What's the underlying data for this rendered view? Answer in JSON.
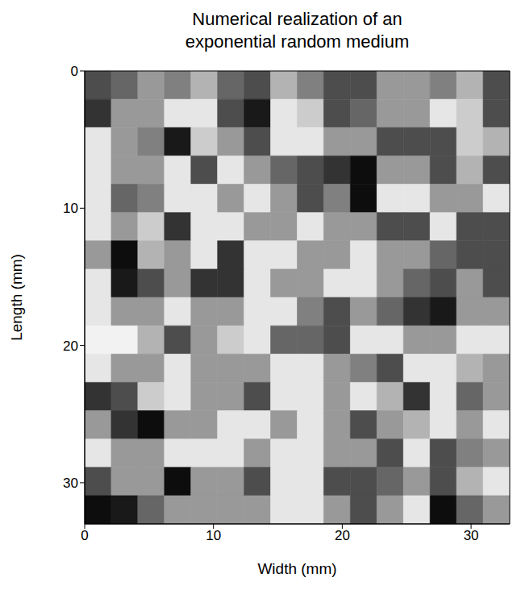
{
  "chart_data": {
    "type": "heatmap",
    "title": "Numerical realization of an exponential random medium",
    "x_label": "Width (mm)",
    "y_label": "Length (mm)",
    "xlim": [
      0,
      33
    ],
    "ylim": [
      0,
      33
    ],
    "xticks": [
      0,
      10,
      20,
      30
    ],
    "yticks": [
      0,
      10,
      20,
      30
    ],
    "color_range": [
      0,
      1
    ],
    "cells": [
      [
        0.7,
        0.6,
        0.4,
        0.5,
        0.3,
        0.6,
        0.7,
        0.3,
        0.5,
        0.7,
        0.7,
        0.4,
        0.4,
        0.5,
        0.3,
        0.7
      ],
      [
        0.8,
        0.4,
        0.4,
        0.1,
        0.1,
        0.7,
        0.9,
        0.1,
        0.2,
        0.7,
        0.6,
        0.4,
        0.4,
        0.1,
        0.2,
        0.7
      ],
      [
        0.1,
        0.4,
        0.5,
        0.9,
        0.2,
        0.4,
        0.7,
        0.1,
        0.1,
        0.4,
        0.4,
        0.7,
        0.7,
        0.7,
        0.2,
        0.3
      ],
      [
        0.1,
        0.4,
        0.4,
        0.1,
        0.7,
        0.1,
        0.4,
        0.6,
        0.7,
        0.8,
        0.95,
        0.4,
        0.4,
        0.7,
        0.3,
        0.7
      ],
      [
        0.1,
        0.6,
        0.5,
        0.1,
        0.1,
        0.4,
        0.1,
        0.4,
        0.7,
        0.5,
        0.95,
        0.1,
        0.1,
        0.4,
        0.4,
        0.1
      ],
      [
        0.1,
        0.4,
        0.2,
        0.8,
        0.1,
        0.1,
        0.4,
        0.4,
        0.1,
        0.4,
        0.4,
        0.7,
        0.7,
        0.1,
        0.7,
        0.7
      ],
      [
        0.4,
        0.95,
        0.3,
        0.4,
        0.1,
        0.8,
        0.1,
        0.1,
        0.4,
        0.4,
        0.1,
        0.4,
        0.4,
        0.6,
        0.7,
        0.7
      ],
      [
        0.1,
        0.9,
        0.7,
        0.4,
        0.8,
        0.8,
        0.1,
        0.4,
        0.4,
        0.1,
        0.1,
        0.4,
        0.6,
        0.7,
        0.4,
        0.7
      ],
      [
        0.1,
        0.4,
        0.4,
        0.1,
        0.4,
        0.4,
        0.1,
        0.1,
        0.5,
        0.7,
        0.4,
        0.6,
        0.8,
        0.9,
        0.4,
        0.4
      ],
      [
        0.05,
        0.05,
        0.3,
        0.7,
        0.4,
        0.2,
        0.1,
        0.6,
        0.6,
        0.7,
        0.1,
        0.1,
        0.4,
        0.4,
        0.1,
        0.1
      ],
      [
        0.1,
        0.4,
        0.4,
        0.1,
        0.4,
        0.4,
        0.4,
        0.1,
        0.1,
        0.4,
        0.5,
        0.7,
        0.1,
        0.1,
        0.3,
        0.4
      ],
      [
        0.8,
        0.7,
        0.2,
        0.1,
        0.4,
        0.4,
        0.7,
        0.1,
        0.1,
        0.4,
        0.1,
        0.3,
        0.8,
        0.1,
        0.6,
        0.4
      ],
      [
        0.4,
        0.8,
        0.95,
        0.4,
        0.4,
        0.1,
        0.1,
        0.4,
        0.1,
        0.4,
        0.7,
        0.4,
        0.3,
        0.1,
        0.4,
        0.1
      ],
      [
        0.1,
        0.4,
        0.4,
        0.1,
        0.1,
        0.1,
        0.4,
        0.1,
        0.1,
        0.4,
        0.4,
        0.7,
        0.1,
        0.7,
        0.5,
        0.4
      ],
      [
        0.7,
        0.4,
        0.4,
        0.95,
        0.4,
        0.4,
        0.7,
        0.1,
        0.1,
        0.7,
        0.7,
        0.6,
        0.4,
        0.7,
        0.3,
        0.1
      ],
      [
        0.95,
        0.9,
        0.6,
        0.4,
        0.4,
        0.4,
        0.4,
        0.1,
        0.1,
        0.4,
        0.7,
        0.4,
        0.1,
        0.95,
        0.6,
        0.4
      ]
    ]
  }
}
